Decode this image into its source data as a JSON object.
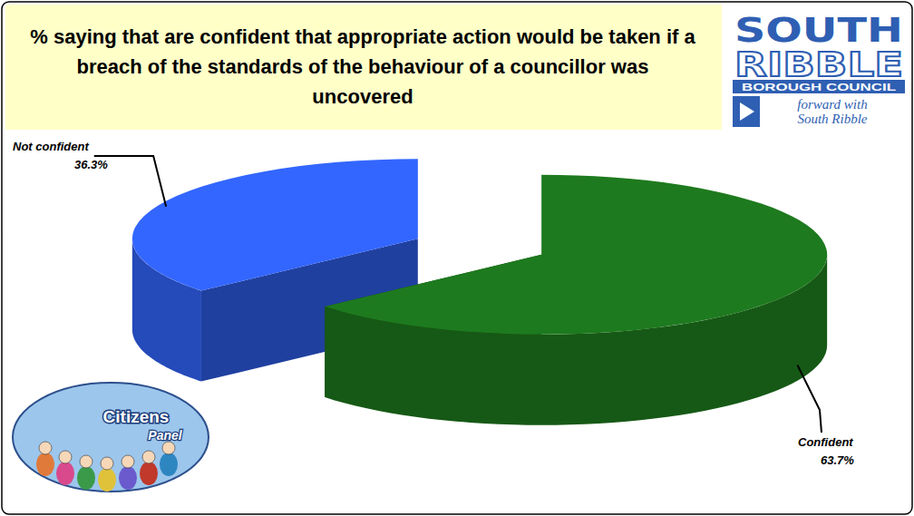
{
  "chart_data": {
    "type": "pie",
    "title": "% saying that are confident that appropriate action would be taken if a breach of the standards of the behaviour of a councillor was uncovered",
    "categories": [
      "Confident",
      "Not confident"
    ],
    "values": [
      63.7,
      36.3
    ],
    "value_labels": [
      "63.7%",
      "36.3%"
    ],
    "colors": [
      "#1e7a1e",
      "#3366ff"
    ],
    "data_labels": true
  },
  "logo": {
    "name": [
      "SOUTH",
      "RIBBLE"
    ],
    "subtitle": "BOROUGH COUNCIL",
    "slogan": [
      "forward with",
      "South Ribble"
    ]
  },
  "badge": {
    "title": "Citizens",
    "subtitle": "Panel"
  }
}
